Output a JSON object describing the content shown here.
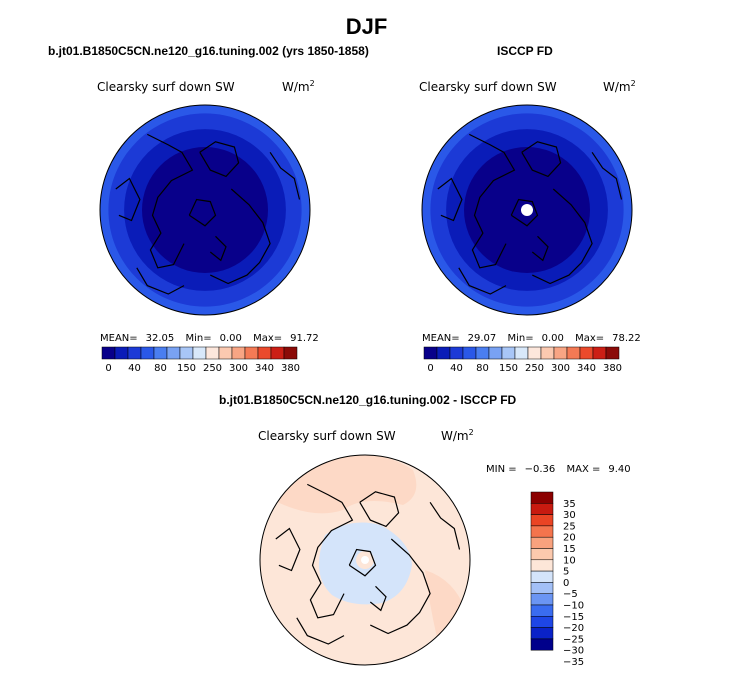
{
  "figure": {
    "season": "DJF"
  },
  "colors": {
    "contour_palette": [
      "#08008a",
      "#0a1cb8",
      "#1c3ad6",
      "#2a58e8",
      "#4a7ef0",
      "#79a2f3",
      "#a8c6f7",
      "#d8e8fa",
      "#fde7dc",
      "#fbc9b0",
      "#f8a584",
      "#f47a55",
      "#eb4a2c",
      "#cc1f15",
      "#8b0b08"
    ],
    "diff_palette": [
      "#00008b",
      "#0a22c8",
      "#1e46e6",
      "#3a6cf0",
      "#6b95f3",
      "#a3c0f7",
      "#d4e4fa",
      "#fde6d8",
      "#fcc9ad",
      "#f9a27e",
      "#f4744d",
      "#ea4424",
      "#c81a10",
      "#8b0000"
    ],
    "coast": "#000000"
  },
  "chart_data": [
    {
      "type": "heatmap",
      "title": "b.jt01.B1850C5CN.ne120_g16.tuning.002 (yrs 1850-1858)",
      "variable": "Clearsky surf down SW",
      "units": "W/m",
      "units_superscript": "2",
      "projection": "north polar stereographic",
      "levels": [
        0,
        40,
        80,
        150,
        250,
        300,
        340,
        380
      ],
      "level_labels": [
        "0",
        "40",
        "80",
        "150",
        "250",
        "300",
        "340",
        "380"
      ],
      "rings_outer_to_inner": [
        {
          "level_index": 3,
          "radius_fraction": 1.0
        },
        {
          "level_index": 2,
          "radius_fraction": 0.92
        },
        {
          "level_index": 1,
          "radius_fraction": 0.77
        },
        {
          "level_index": 0,
          "radius_fraction": 0.6
        }
      ],
      "stats": {
        "mean_label": "MEAN=",
        "mean": "32.05",
        "min_label": "Min=",
        "min": "0.00",
        "max_label": "Max=",
        "max": "91.72"
      }
    },
    {
      "type": "heatmap",
      "title": "ISCCP FD",
      "variable": "Clearsky surf down SW",
      "units": "W/m",
      "units_superscript": "2",
      "projection": "north polar stereographic",
      "levels": [
        0,
        40,
        80,
        150,
        250,
        300,
        340,
        380
      ],
      "level_labels": [
        "0",
        "40",
        "80",
        "150",
        "250",
        "300",
        "340",
        "380"
      ],
      "rings_outer_to_inner": [
        {
          "level_index": 3,
          "radius_fraction": 1.0
        },
        {
          "level_index": 2,
          "radius_fraction": 0.92
        },
        {
          "level_index": 1,
          "radius_fraction": 0.77
        },
        {
          "level_index": 0,
          "radius_fraction": 0.6
        }
      ],
      "missing_pole": true,
      "stats": {
        "mean_label": "MEAN=",
        "mean": "29.07",
        "min_label": "Min=",
        "min": "0.00",
        "max_label": "Max=",
        "max": "78.22"
      }
    },
    {
      "type": "heatmap",
      "title": "b.jt01.B1850C5CN.ne120_g16.tuning.002 - ISCCP FD",
      "variable": "Clearsky surf down SW",
      "units": "W/m",
      "units_superscript": "2",
      "projection": "north polar stereographic",
      "levels": [
        -35,
        -30,
        -25,
        -20,
        -15,
        -10,
        -5,
        0,
        5,
        10,
        15,
        20,
        25,
        30,
        35
      ],
      "level_labels": [
        "35",
        "30",
        "25",
        "20",
        "15",
        "10",
        "5",
        "0",
        "−5",
        "−10",
        "−15",
        "−20",
        "−25",
        "−30",
        "−35"
      ],
      "dominant_range": [
        0,
        5
      ],
      "arctic_range": [
        -5,
        0
      ],
      "stats": {
        "min_label": "MIN =",
        "min": "−0.36",
        "max_label": "MAX =",
        "max": "9.40"
      }
    }
  ]
}
